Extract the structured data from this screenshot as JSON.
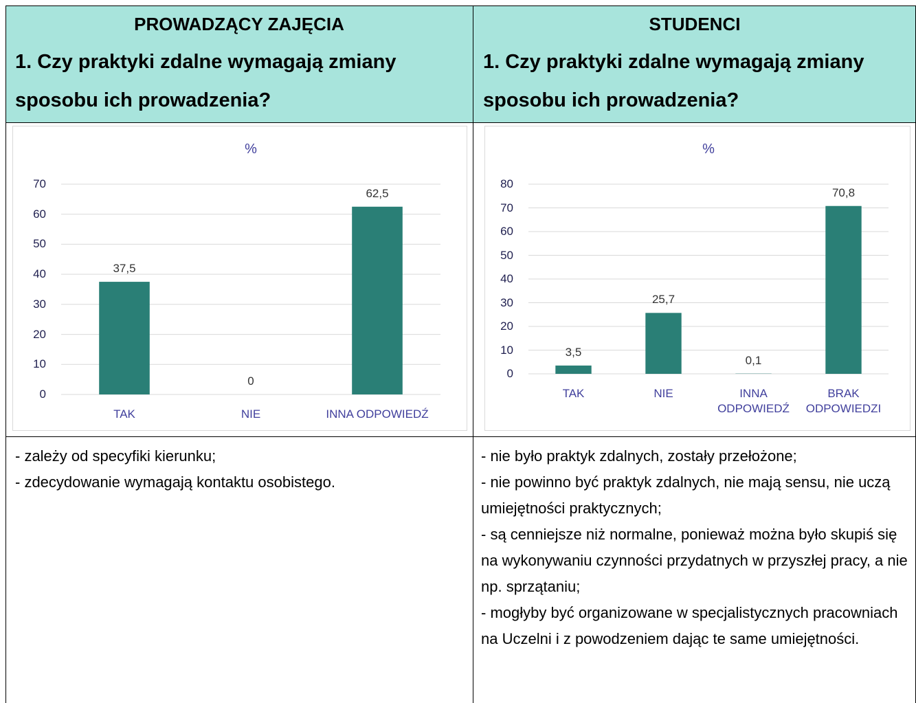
{
  "table": {
    "headers": [
      "PROWADZĄCY ZAJĘCIA",
      "STUDENCI"
    ],
    "questions": [
      "1. Czy praktyki zdalne wymagają zmiany sposobu ich prowadzenia?",
      "1. Czy praktyki zdalne wymagają zmiany sposobu ich prowadzenia?"
    ],
    "comments": [
      [
        "- zależy od specyfiki kierunku;",
        "- zdecydowanie wymagają kontaktu osobistego."
      ],
      [
        "- nie było praktyk zdalnych, zostały przełożone;",
        "- nie powinno być praktyk zdalnych, nie mają sensu, nie uczą umiejętności praktycznych;",
        "- są cenniejsze niż normalne, ponieważ można było skupiś się na wykonywaniu czynności przydatnych w przyszłej pracy, a nie np. sprzątaniu;",
        "- mogłyby być organizowane w specjalistycznych pracowniach na Uczelni i z powodzeniem dając te same umiejętności."
      ]
    ]
  },
  "chart_data": [
    {
      "type": "bar",
      "title": "%",
      "categories": [
        "TAK",
        "NIE",
        "INNA ODPOWIEDŹ"
      ],
      "values": [
        37.5,
        0,
        62.5
      ],
      "value_labels": [
        "37,5",
        "0",
        "62,5"
      ],
      "color": "#2a7f76",
      "ylim": [
        0,
        70
      ],
      "yticks": [
        0,
        10,
        20,
        30,
        40,
        50,
        60,
        70
      ],
      "grid": true
    },
    {
      "type": "bar",
      "title": "%",
      "categories": [
        "TAK",
        "NIE",
        "INNA ODPOWIEDŹ",
        "BRAK ODPOWIEDZI"
      ],
      "values": [
        3.5,
        25.7,
        0.1,
        70.8
      ],
      "value_labels": [
        "3,5",
        "25,7",
        "0,1",
        "70,8"
      ],
      "color": "#2a7f76",
      "ylim": [
        0,
        80
      ],
      "yticks": [
        0,
        10,
        20,
        30,
        40,
        50,
        60,
        70,
        80
      ],
      "grid": true
    }
  ]
}
